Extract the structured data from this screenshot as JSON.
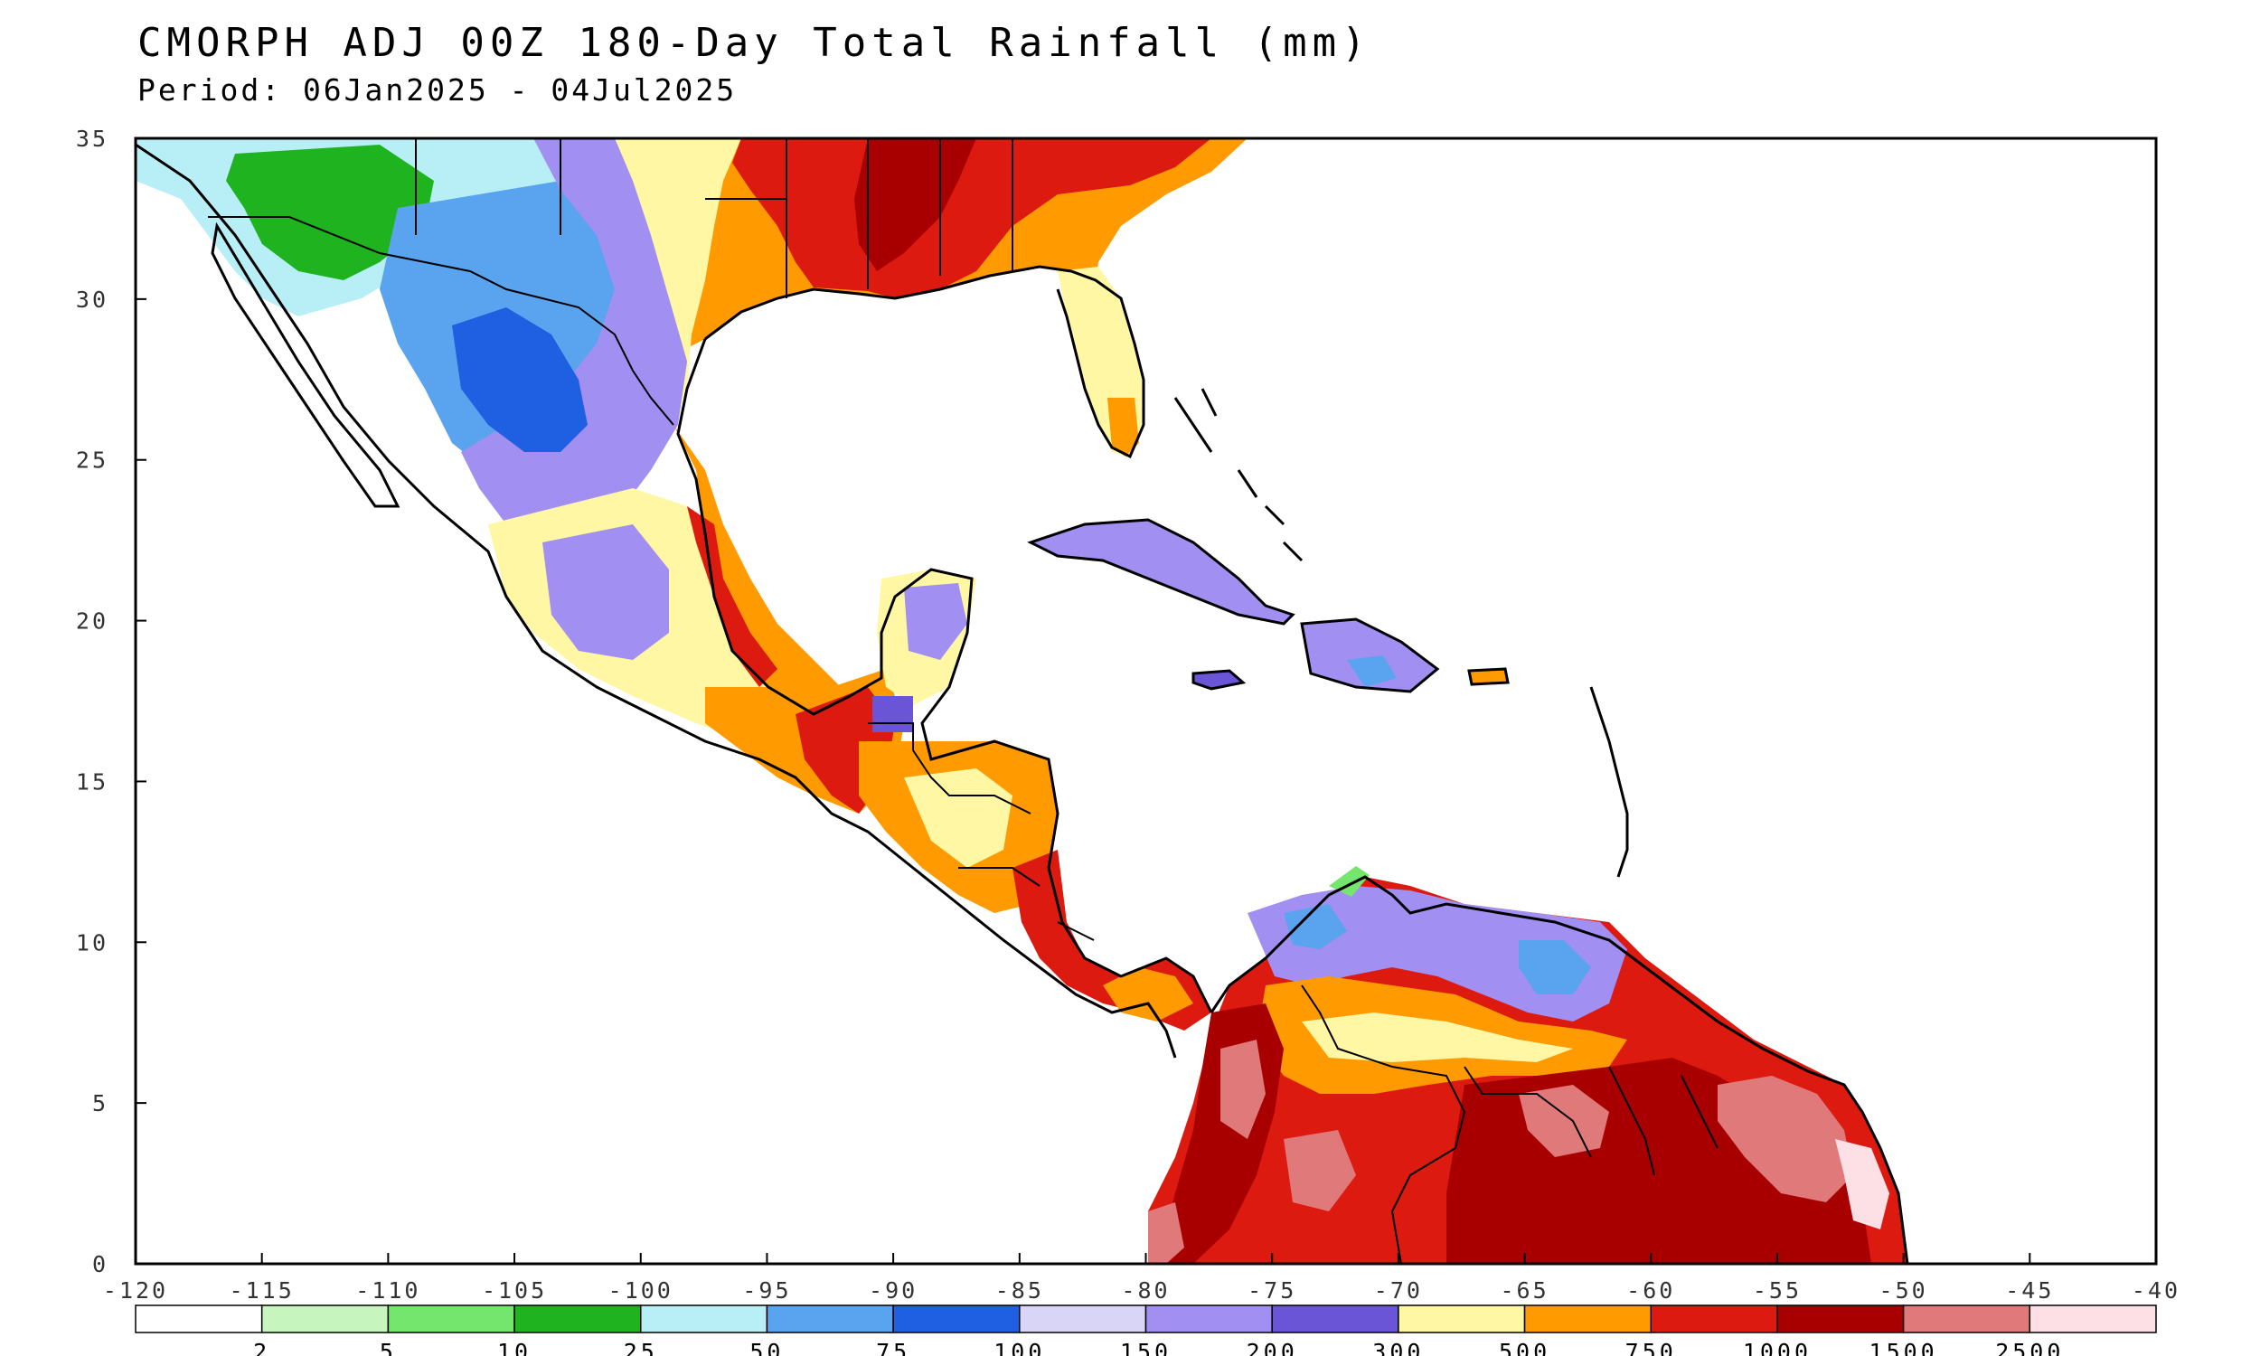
{
  "title": "CMORPH ADJ 00Z 180-Day Total Rainfall (mm)",
  "period": "Period: 06Jan2025 - 04Jul2025",
  "axes": {
    "lon_ticks": [
      "-120",
      "-115",
      "-110",
      "-105",
      "-100",
      "-95",
      "-90",
      "-85",
      "-80",
      "-75",
      "-70",
      "-65",
      "-60",
      "-55",
      "-50",
      "-45",
      "-40"
    ],
    "lat_ticks": [
      "35",
      "30",
      "25",
      "20",
      "15",
      "10",
      "5",
      "0"
    ],
    "lon_range": [
      -120,
      -40
    ],
    "lat_range": [
      0,
      35
    ]
  },
  "legend": {
    "colors": [
      "#ffffff",
      "#c6f5bd",
      "#74e56d",
      "#1fb31f",
      "#b8eff7",
      "#5aa3ef",
      "#1f60e3",
      "#d9d5f7",
      "#a18ff2",
      "#6a55d6",
      "#fff7a3",
      "#ff9a00",
      "#dc1a10",
      "#a80000",
      "#e07a7a",
      "#fde0e6"
    ],
    "labels": [
      "2",
      "5",
      "10",
      "25",
      "50",
      "75",
      "100",
      "150",
      "200",
      "300",
      "500",
      "750",
      "1000",
      "1500",
      "2500"
    ]
  }
}
